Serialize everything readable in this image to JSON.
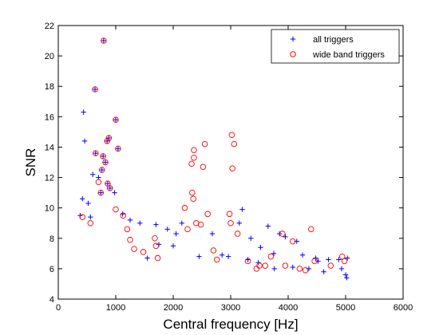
{
  "colors": {
    "all_triggers": "#0000ff",
    "wide_band_triggers": "#ff0000",
    "axes": "#000000",
    "background": "#ffffff"
  },
  "chart_data": {
    "type": "scatter",
    "title": "",
    "xlabel": "Central frequency [Hz]",
    "ylabel": "SNR",
    "xlim": [
      0,
      6000
    ],
    "ylim": [
      4,
      22
    ],
    "x_ticks": [
      0,
      1000,
      2000,
      3000,
      4000,
      5000,
      6000
    ],
    "y_ticks": [
      4,
      6,
      8,
      10,
      12,
      14,
      16,
      18,
      20,
      22
    ],
    "grid": false,
    "legend_position": "top-right",
    "series": [
      {
        "name": "all triggers",
        "marker": "plus",
        "color": "#0000ff",
        "points": [
          [
            790,
            21.0
          ],
          [
            640,
            17.8
          ],
          [
            440,
            16.3
          ],
          [
            1000,
            15.8
          ],
          [
            880,
            14.6
          ],
          [
            850,
            14.4
          ],
          [
            460,
            14.4
          ],
          [
            1040,
            13.9
          ],
          [
            650,
            13.6
          ],
          [
            780,
            13.4
          ],
          [
            820,
            13.0
          ],
          [
            760,
            12.5
          ],
          [
            600,
            12.2
          ],
          [
            700,
            12.0
          ],
          [
            860,
            11.6
          ],
          [
            900,
            11.3
          ],
          [
            740,
            11.0
          ],
          [
            980,
            11.0
          ],
          [
            420,
            10.6
          ],
          [
            520,
            10.3
          ],
          [
            1120,
            9.6
          ],
          [
            380,
            9.5
          ],
          [
            1250,
            9.2
          ],
          [
            560,
            9.4
          ],
          [
            1420,
            9.0
          ],
          [
            1700,
            8.9
          ],
          [
            1900,
            8.6
          ],
          [
            2150,
            9.0
          ],
          [
            2050,
            8.3
          ],
          [
            2680,
            8.3
          ],
          [
            3200,
            9.9
          ],
          [
            3150,
            9.0
          ],
          [
            3350,
            8.0
          ],
          [
            3520,
            7.4
          ],
          [
            3650,
            8.8
          ],
          [
            3750,
            7.0
          ],
          [
            3850,
            8.3
          ],
          [
            3950,
            8.1
          ],
          [
            4150,
            7.8
          ],
          [
            4250,
            6.9
          ],
          [
            4480,
            6.7
          ],
          [
            4520,
            6.5
          ],
          [
            4700,
            6.6
          ],
          [
            4880,
            6.6
          ],
          [
            4930,
            6.0
          ],
          [
            5000,
            5.6
          ],
          [
            5020,
            5.4
          ],
          [
            5030,
            6.7
          ],
          [
            1550,
            6.7
          ],
          [
            1750,
            7.6
          ],
          [
            2000,
            7.5
          ],
          [
            2450,
            6.8
          ],
          [
            2850,
            6.9
          ],
          [
            2960,
            6.8
          ],
          [
            3300,
            6.6
          ],
          [
            3480,
            6.4
          ],
          [
            3760,
            6.0
          ],
          [
            4080,
            6.1
          ],
          [
            4360,
            6.0
          ],
          [
            4620,
            5.8
          ]
        ]
      },
      {
        "name": "wide band triggers",
        "marker": "circle",
        "color": "#ff0000",
        "points": [
          [
            790,
            21.0
          ],
          [
            640,
            17.8
          ],
          [
            1000,
            15.8
          ],
          [
            880,
            14.6
          ],
          [
            850,
            14.4
          ],
          [
            1040,
            13.9
          ],
          [
            650,
            13.6
          ],
          [
            780,
            13.4
          ],
          [
            820,
            13.0
          ],
          [
            760,
            12.5
          ],
          [
            700,
            11.7
          ],
          [
            860,
            11.6
          ],
          [
            900,
            11.3
          ],
          [
            740,
            11.0
          ],
          [
            420,
            9.4
          ],
          [
            1000,
            9.9
          ],
          [
            1130,
            9.5
          ],
          [
            560,
            9.0
          ],
          [
            2360,
            13.8
          ],
          [
            2360,
            13.3
          ],
          [
            2550,
            14.2
          ],
          [
            2320,
            12.9
          ],
          [
            2520,
            12.7
          ],
          [
            2330,
            11.0
          ],
          [
            2350,
            10.6
          ],
          [
            2200,
            10.0
          ],
          [
            2600,
            9.6
          ],
          [
            2400,
            9.0
          ],
          [
            2480,
            8.9
          ],
          [
            2250,
            8.6
          ],
          [
            3020,
            14.8
          ],
          [
            3060,
            14.2
          ],
          [
            3030,
            12.6
          ],
          [
            2980,
            9.6
          ],
          [
            3000,
            9.0
          ],
          [
            3120,
            8.3
          ],
          [
            3900,
            8.3
          ],
          [
            4080,
            7.8
          ],
          [
            4400,
            8.6
          ],
          [
            4460,
            6.5
          ],
          [
            4940,
            6.8
          ],
          [
            4980,
            6.5
          ],
          [
            1680,
            8.0
          ],
          [
            1700,
            7.5
          ],
          [
            1730,
            6.7
          ],
          [
            1480,
            7.1
          ],
          [
            1320,
            7.3
          ],
          [
            1250,
            7.9
          ],
          [
            1200,
            8.6
          ],
          [
            2700,
            7.2
          ],
          [
            2760,
            6.6
          ],
          [
            3700,
            6.8
          ],
          [
            3500,
            6.2
          ],
          [
            3600,
            6.2
          ],
          [
            3300,
            6.5
          ],
          [
            3450,
            6.0
          ],
          [
            3950,
            6.2
          ],
          [
            4200,
            6.0
          ],
          [
            4300,
            5.9
          ],
          [
            4740,
            6.2
          ]
        ]
      }
    ]
  }
}
